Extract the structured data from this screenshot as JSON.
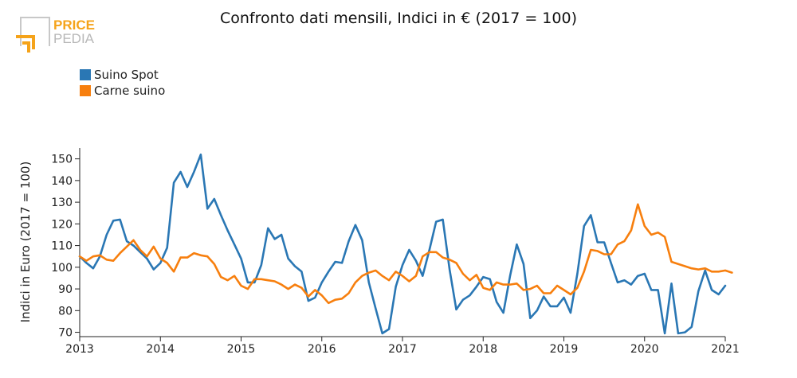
{
  "brand": {
    "line1": "PRICE",
    "line2": "PEDIA"
  },
  "chart_data": {
    "type": "line",
    "title": "Confronto dati mensili, Indici in € (2017 = 100)",
    "ylabel": "Indici in Euro (2017 = 100)",
    "xlabel": "",
    "xlim": [
      "2013-01",
      "2021-01"
    ],
    "ylim": [
      68,
      155
    ],
    "x_ticks": [
      "2013",
      "2014",
      "2015",
      "2016",
      "2017",
      "2018",
      "2019",
      "2020",
      "2021"
    ],
    "y_ticks": [
      70,
      80,
      90,
      100,
      110,
      120,
      130,
      140,
      150
    ],
    "grid": false,
    "legend_position": "top-left",
    "x_start": "2013-01",
    "series": [
      {
        "name": "Suino Spot",
        "color": "#2a77b4",
        "values": [
          105,
          102,
          99.5,
          105,
          115,
          121.5,
          122,
          112,
          110,
          107,
          104,
          99,
          102,
          109,
          139,
          144,
          137,
          144,
          152,
          127,
          131.5,
          124,
          117,
          110.5,
          104,
          93,
          93,
          101,
          118,
          113,
          115,
          104,
          100.5,
          98,
          84.5,
          86,
          93,
          98,
          102.5,
          102,
          112,
          119.5,
          112.5,
          93,
          81,
          69.5,
          71.5,
          91,
          101,
          108,
          103,
          96,
          108,
          121,
          122,
          99,
          80.5,
          85,
          87,
          91,
          95.5,
          94.5,
          84,
          79,
          96,
          110.5,
          101.5,
          76.5,
          80,
          86.5,
          82,
          82,
          86,
          79,
          97,
          119,
          124,
          111.5,
          111.5,
          102,
          93,
          94,
          92,
          96,
          97,
          89.5,
          89.5,
          69.5,
          92.5,
          69.5,
          70,
          72.5,
          89,
          98.5,
          89.5,
          87.5,
          91.5
        ]
      },
      {
        "name": "Carne suino",
        "color": "#f77f0e",
        "values": [
          105,
          103,
          105,
          105.5,
          103.5,
          103,
          106.5,
          109.5,
          112.5,
          108,
          105,
          109.5,
          104,
          102,
          98,
          104.5,
          104.5,
          106.5,
          105.5,
          105,
          101.5,
          95.5,
          94,
          96,
          91.5,
          90,
          94.5,
          94.5,
          94,
          93.5,
          92,
          90,
          92,
          90.5,
          86.5,
          89.5,
          87,
          83.5,
          85,
          85.5,
          88,
          93,
          96,
          97.5,
          98.5,
          96,
          94,
          98,
          96,
          93.5,
          96,
          105,
          107,
          107,
          104.5,
          103.5,
          102,
          97,
          94,
          96.5,
          90.5,
          89.5,
          93,
          92,
          92,
          92.5,
          89.5,
          90,
          91.5,
          88,
          88,
          91.5,
          89.5,
          87.5,
          90.5,
          98,
          108,
          107.5,
          106,
          106,
          110.5,
          112,
          117,
          129,
          119,
          115,
          116,
          114,
          102.5,
          101.5,
          100.5,
          99.5,
          99,
          99.5,
          98,
          98,
          98.5,
          97.5
        ]
      }
    ]
  }
}
